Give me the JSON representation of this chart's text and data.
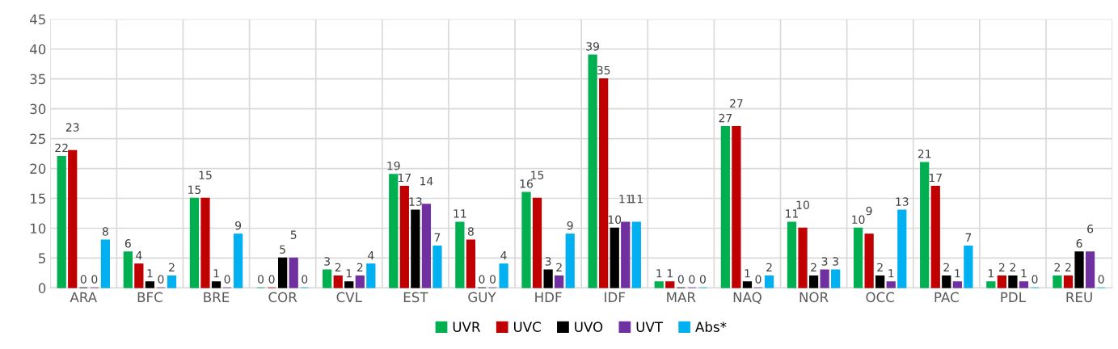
{
  "chart_data": {
    "type": "bar",
    "categories": [
      "ARA",
      "BFC",
      "BRE",
      "COR",
      "CVL",
      "EST",
      "GUY",
      "HDF",
      "IDF",
      "MAR",
      "NAQ",
      "NOR",
      "OCC",
      "PAC",
      "PDL",
      "REU"
    ],
    "series": [
      {
        "name": "UVR",
        "color": "#00b050",
        "values": [
          22,
          6,
          15,
          0,
          3,
          19,
          11,
          16,
          39,
          1,
          27,
          11,
          10,
          21,
          1,
          2
        ]
      },
      {
        "name": "UVC",
        "color": "#c00000",
        "values": [
          23,
          4,
          15,
          0,
          2,
          17,
          8,
          15,
          35,
          1,
          27,
          10,
          9,
          17,
          2,
          2
        ]
      },
      {
        "name": "UVO",
        "color": "#000000",
        "values": [
          0,
          1,
          1,
          5,
          1,
          13,
          0,
          3,
          10,
          0,
          1,
          2,
          2,
          2,
          2,
          6
        ]
      },
      {
        "name": "UVT",
        "color": "#7030a0",
        "values": [
          0,
          0,
          0,
          5,
          2,
          14,
          0,
          2,
          11,
          0,
          0,
          3,
          1,
          1,
          1,
          6
        ]
      },
      {
        "name": "Abs*",
        "color": "#00b0f0",
        "values": [
          8,
          2,
          9,
          0,
          4,
          7,
          4,
          9,
          11,
          0,
          2,
          3,
          13,
          7,
          0,
          0
        ]
      }
    ],
    "ylim": [
      0,
      45
    ],
    "yticks": [
      0,
      5,
      10,
      15,
      20,
      25,
      30,
      35,
      40,
      45
    ],
    "grid": true,
    "legend": "bottom",
    "data_labels": true
  }
}
